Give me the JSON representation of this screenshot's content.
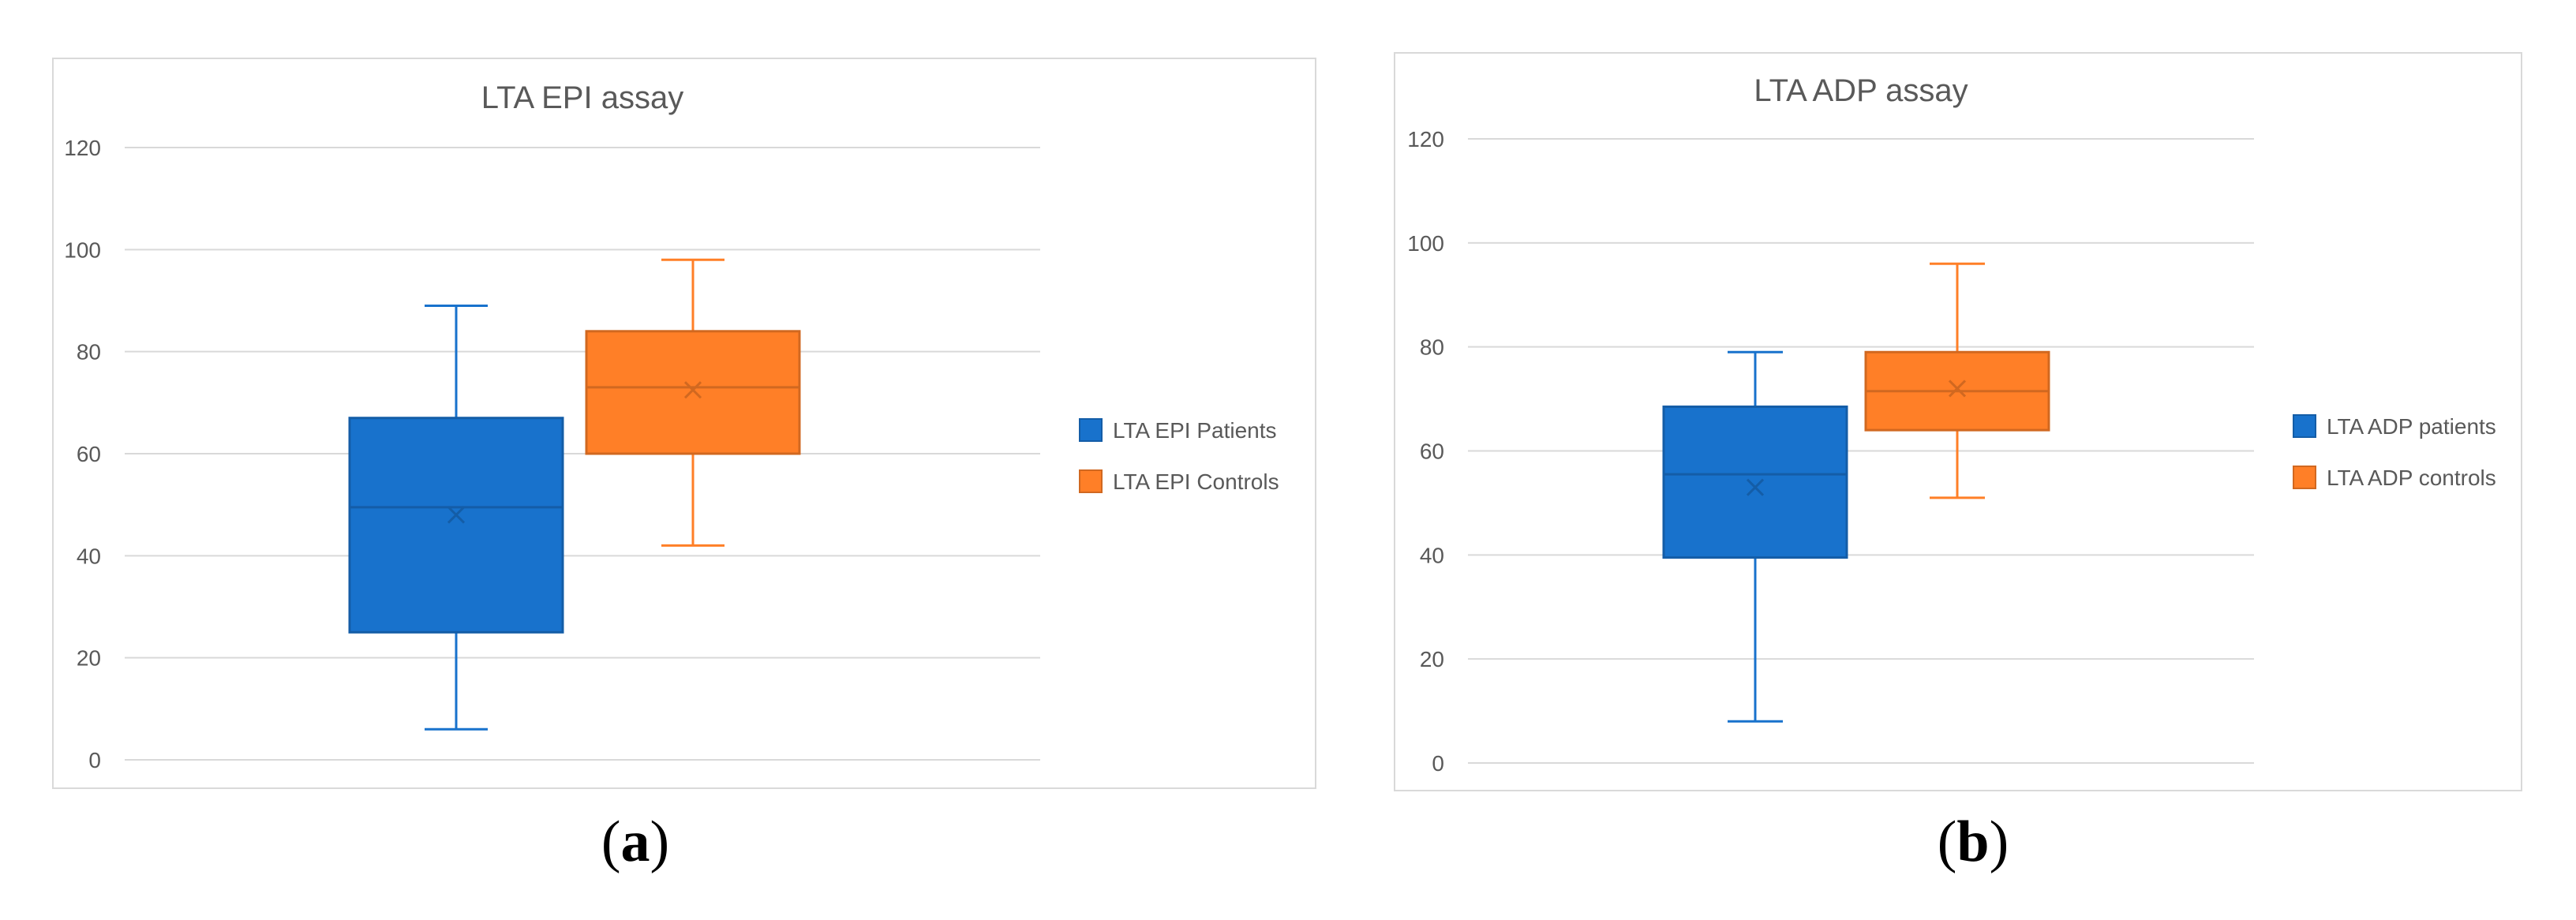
{
  "chart_data": [
    {
      "type": "box",
      "title": "LTA EPI assay",
      "ylim": [
        0,
        120
      ],
      "yticks": [
        0,
        20,
        40,
        60,
        80,
        100,
        120
      ],
      "grid": true,
      "legend_position": "right",
      "series": [
        {
          "name": "LTA EPI Patients",
          "color": "#1872CC",
          "min": 6,
          "q1": 25,
          "median": 49.5,
          "mean": 48,
          "q3": 67,
          "max": 89
        },
        {
          "name": "LTA EPI Controls",
          "color": "#FF7F27",
          "min": 42,
          "q1": 60,
          "median": 73,
          "mean": 72.5,
          "q3": 84,
          "max": 98
        }
      ]
    },
    {
      "type": "box",
      "title": "LTA ADP assay",
      "ylim": [
        0,
        120
      ],
      "yticks": [
        0,
        20,
        40,
        60,
        80,
        100,
        120
      ],
      "grid": true,
      "legend_position": "right",
      "series": [
        {
          "name": "LTA ADP patients",
          "color": "#1872CC",
          "min": 8,
          "q1": 39.5,
          "median": 55.5,
          "mean": 53,
          "q3": 68.5,
          "max": 79
        },
        {
          "name": "LTA ADP controls",
          "color": "#FF7F27",
          "min": 51,
          "q1": 64,
          "median": 71.5,
          "mean": 72,
          "q3": 79,
          "max": 96
        }
      ]
    }
  ],
  "panel_labels": {
    "a": "a",
    "b": "b"
  }
}
